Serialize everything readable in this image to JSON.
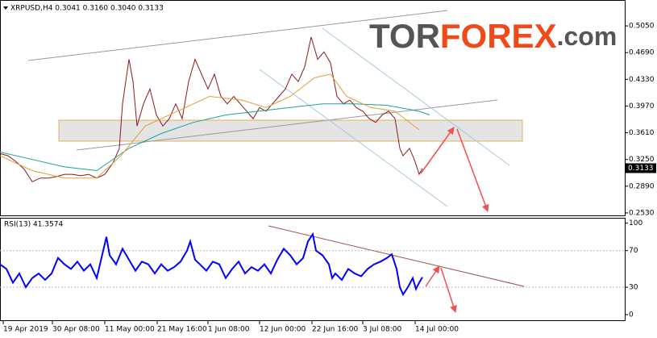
{
  "chart_data": [
    {
      "type": "line",
      "title": "XRPUSD,H4  0.3041 0.3160 0.3040 0.3133",
      "logo": {
        "part1": "TOR",
        "part2": "FOREX",
        "part3": ".com"
      },
      "xlim": [
        0,
        775
      ],
      "xticks": [
        {
          "value": 4,
          "label": "19 Apr 2019"
        },
        {
          "value": 65,
          "label": "30 Apr 08:00"
        },
        {
          "value": 130,
          "label": "11 May 00:00"
        },
        {
          "value": 195,
          "label": "21 May 16:00"
        },
        {
          "value": 258,
          "label": "1 Jun 08:00"
        },
        {
          "value": 322,
          "label": "12 Jun 00:00"
        },
        {
          "value": 387,
          "label": "22 Jun 16:00"
        },
        {
          "value": 450,
          "label": "3 Jul 08:00"
        },
        {
          "value": 515,
          "label": "14 Jul 00:00"
        }
      ],
      "ylim": [
        0.2486,
        0.5388
      ],
      "yticks": [
        {
          "value": 0.505,
          "label": "0.5050"
        },
        {
          "value": 0.469,
          "label": "0.4690"
        },
        {
          "value": 0.433,
          "label": "0.4330"
        },
        {
          "value": 0.397,
          "label": "0.3970"
        },
        {
          "value": 0.361,
          "label": "0.3610"
        },
        {
          "value": 0.325,
          "label": "0.3250"
        },
        {
          "value": 0.289,
          "label": "0.2890"
        },
        {
          "value": 0.253,
          "label": "0.2530"
        }
      ],
      "last_price": {
        "value": 0.3133,
        "label": "0.3133"
      },
      "series": [
        {
          "color": "#8b1a1a",
          "x": [
            0,
            10,
            20,
            30,
            40,
            50,
            60,
            70,
            80,
            90,
            100,
            110,
            120,
            130,
            140,
            148,
            152,
            156,
            160,
            165,
            170,
            178,
            186,
            194,
            202,
            210,
            218,
            226,
            234,
            242,
            250,
            258,
            266,
            274,
            282,
            290,
            298,
            306,
            314,
            322,
            330,
            338,
            346,
            354,
            362,
            370,
            378,
            386,
            394,
            402,
            410,
            418,
            426,
            434,
            442,
            450,
            458,
            466,
            474,
            482,
            490,
            496,
            500,
            508,
            514,
            520,
            524
          ],
          "values": [
            0.333,
            0.33,
            0.322,
            0.312,
            0.295,
            0.3,
            0.3,
            0.302,
            0.305,
            0.305,
            0.303,
            0.305,
            0.3,
            0.305,
            0.32,
            0.34,
            0.4,
            0.43,
            0.46,
            0.43,
            0.37,
            0.4,
            0.42,
            0.385,
            0.37,
            0.38,
            0.4,
            0.38,
            0.43,
            0.46,
            0.44,
            0.42,
            0.44,
            0.41,
            0.4,
            0.41,
            0.4,
            0.39,
            0.38,
            0.395,
            0.39,
            0.4,
            0.41,
            0.42,
            0.44,
            0.43,
            0.45,
            0.49,
            0.46,
            0.47,
            0.455,
            0.41,
            0.4,
            0.405,
            0.395,
            0.39,
            0.38,
            0.375,
            0.385,
            0.39,
            0.38,
            0.34,
            0.33,
            0.34,
            0.325,
            0.305,
            0.313
          ]
        },
        {
          "color": "#1aa39a",
          "x": [
            0,
            40,
            80,
            120,
            160,
            200,
            240,
            280,
            320,
            360,
            400,
            440,
            480,
            520,
            533
          ],
          "values": [
            0.335,
            0.325,
            0.315,
            0.31,
            0.34,
            0.36,
            0.375,
            0.385,
            0.39,
            0.395,
            0.4,
            0.4,
            0.398,
            0.39,
            0.385
          ]
        },
        {
          "color": "#e0a030",
          "x": [
            0,
            40,
            80,
            120,
            150,
            180,
            220,
            260,
            300,
            330,
            360,
            390,
            410,
            430,
            460,
            490,
            520
          ],
          "values": [
            0.33,
            0.31,
            0.3,
            0.3,
            0.33,
            0.37,
            0.39,
            0.41,
            0.405,
            0.395,
            0.41,
            0.435,
            0.44,
            0.41,
            0.395,
            0.39,
            0.365
          ]
        }
      ]
    },
    {
      "type": "line",
      "title": "RSI(13) 41.3574",
      "xlim": [
        0,
        775
      ],
      "ylim": [
        -7,
        105
      ],
      "yticks": [
        100,
        70,
        30,
        0
      ],
      "series": [
        {
          "color": "#0000ff",
          "x": [
            0,
            8,
            16,
            24,
            32,
            40,
            48,
            56,
            64,
            72,
            80,
            88,
            96,
            104,
            112,
            120,
            128,
            132,
            136,
            144,
            152,
            160,
            168,
            176,
            184,
            192,
            200,
            208,
            216,
            224,
            232,
            236,
            242,
            248,
            256,
            264,
            272,
            280,
            288,
            296,
            304,
            312,
            320,
            328,
            336,
            344,
            352,
            360,
            368,
            376,
            382,
            388,
            392,
            400,
            408,
            412,
            416,
            424,
            432,
            440,
            448,
            456,
            464,
            472,
            480,
            486,
            492,
            496,
            500,
            506,
            512,
            516,
            520,
            524
          ],
          "values": [
            55,
            50,
            35,
            45,
            30,
            40,
            45,
            38,
            45,
            62,
            55,
            50,
            58,
            48,
            55,
            40,
            70,
            85,
            65,
            55,
            72,
            60,
            48,
            58,
            55,
            45,
            55,
            48,
            52,
            58,
            70,
            80,
            60,
            55,
            48,
            58,
            55,
            40,
            50,
            58,
            45,
            52,
            48,
            55,
            45,
            60,
            72,
            65,
            55,
            62,
            80,
            88,
            70,
            65,
            55,
            40,
            45,
            38,
            50,
            45,
            42,
            50,
            55,
            58,
            62,
            66,
            50,
            30,
            22,
            30,
            40,
            28,
            35,
            41
          ]
        }
      ]
    }
  ]
}
